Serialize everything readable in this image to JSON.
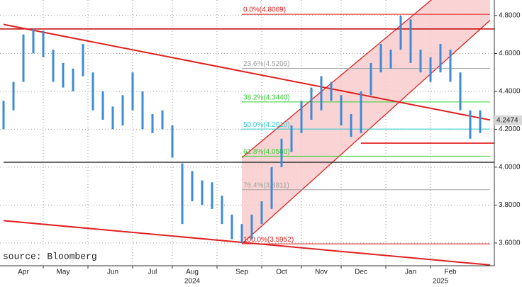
{
  "chart_data": {
    "type": "range-bar",
    "color": "#3d8bd6",
    "categories": [
      null,
      null,
      "Apr",
      null,
      null,
      null,
      "May",
      null,
      null,
      null,
      null,
      "Jun",
      null,
      null,
      null,
      "Jul",
      null,
      null,
      null,
      "Aug",
      null,
      null,
      null,
      null,
      "Sep",
      null,
      null,
      null,
      "Oct",
      null,
      null,
      null,
      "Nov",
      null,
      null,
      null,
      "Dec",
      null,
      null,
      null,
      null,
      "Jan",
      null,
      null,
      null,
      "Feb",
      null,
      null,
      null
    ],
    "high": [
      4.35,
      4.45,
      4.7,
      4.73,
      4.72,
      4.62,
      4.55,
      4.52,
      4.65,
      4.5,
      4.4,
      4.32,
      4.38,
      4.5,
      4.4,
      4.28,
      4.3,
      4.22,
      4.02,
      3.98,
      3.93,
      3.92,
      3.85,
      3.75,
      3.7,
      3.75,
      3.82,
      4.0,
      4.15,
      4.22,
      4.35,
      4.42,
      4.48,
      4.45,
      4.38,
      4.28,
      4.4,
      4.55,
      4.65,
      4.62,
      4.8,
      4.78,
      4.62,
      4.58,
      4.65,
      4.62,
      4.5,
      4.3,
      4.3
    ],
    "low": [
      4.2,
      4.3,
      4.45,
      4.6,
      4.58,
      4.45,
      4.42,
      4.4,
      4.48,
      4.3,
      4.25,
      4.2,
      4.22,
      4.3,
      4.2,
      4.18,
      4.2,
      4.05,
      3.7,
      3.82,
      3.8,
      3.78,
      3.7,
      3.62,
      3.6,
      3.62,
      3.7,
      3.78,
      4.0,
      4.08,
      4.18,
      4.25,
      4.3,
      4.35,
      4.22,
      4.16,
      4.18,
      4.38,
      4.5,
      4.52,
      4.62,
      4.55,
      4.5,
      4.45,
      4.5,
      4.45,
      4.3,
      4.15,
      4.18
    ],
    "years": [
      {
        "label": "2024",
        "at": 19
      },
      {
        "label": "2025",
        "at": 44
      }
    ],
    "ylim": [
      3.48,
      4.882
    ],
    "yticks": [
      {
        "value": 3.6,
        "label": "3.6000"
      },
      {
        "value": 3.8,
        "label": "3.8000"
      },
      {
        "value": 4.0,
        "label": "4.0000"
      },
      {
        "value": 4.2,
        "label": "4.2000"
      },
      {
        "value": 4.4,
        "label": "4.4000"
      },
      {
        "value": 4.6,
        "label": "4.6000"
      },
      {
        "value": 4.8,
        "label": "4.8000"
      }
    ],
    "grid": true,
    "last_price": 4.2474,
    "channel": {
      "color": "#e02020",
      "fill": "#f9c9c9",
      "from": 24,
      "to": 49,
      "lower": [
        3.5952,
        4.775
      ],
      "upper": [
        4.05,
        5.14
      ]
    },
    "lines": [
      {
        "color": "#e02020",
        "from": [
          0,
          4.753
        ],
        "to": [
          49,
          4.249
        ]
      },
      {
        "color": "#e02020",
        "from": [
          0,
          3.718
        ],
        "to": [
          49,
          3.484
        ]
      }
    ],
    "levels": [
      {
        "value": 4.729,
        "color": "#c00000",
        "from": 0,
        "to": 49
      },
      {
        "value": 4.026,
        "color": "#333333",
        "from": 0,
        "to": 49
      },
      {
        "value": 4.127,
        "color": "#e00000",
        "from": 36,
        "to": 49
      }
    ],
    "fib_levels": [
      {
        "label": "0.0%(4.8069)",
        "value": 4.8069,
        "color": "#e02020"
      },
      {
        "label": "23.6%(4.5209)",
        "value": 4.5209,
        "color": "#a0a0a0"
      },
      {
        "label": "38.2%(4.3440)",
        "value": 4.344,
        "color": "#33cc33"
      },
      {
        "label": "50.0%(4.2010)",
        "value": 4.201,
        "color": "#33cccc"
      },
      {
        "label": "61.8%(4.0580)",
        "value": 4.058,
        "color": "#33cc33"
      },
      {
        "label": "76.4%(3.8811)",
        "value": 3.8811,
        "color": "#a0a0a0"
      },
      {
        "label": "100.0%(3.5952)",
        "value": 3.5952,
        "color": "#e02020"
      }
    ],
    "fib_from": 24,
    "fib_to": 49,
    "source": "source: Bloomberg"
  }
}
